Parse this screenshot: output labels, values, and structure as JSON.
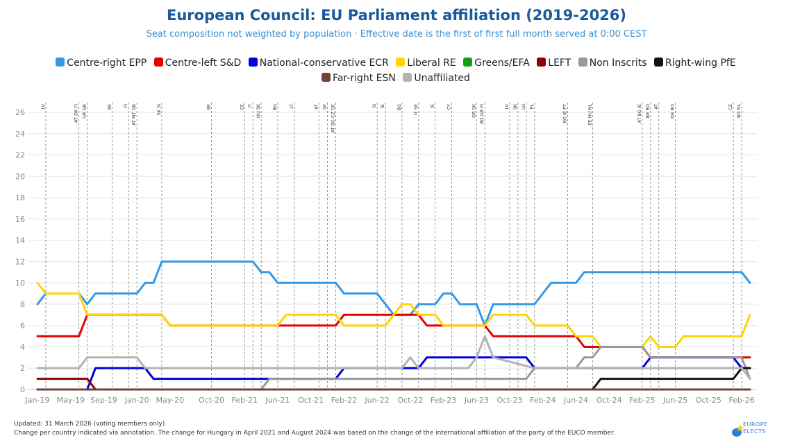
{
  "title": "European Council: EU Parliament affiliation (2019-2026)",
  "subtitle": "Seat composition not weighted by population · Effective date is the first of first full month served at 0:00 CEST",
  "footer": {
    "line1": "Updated: 31 March 2026 (voting members only)",
    "line2": "Change per country indicated via annotation. The change for Hungary in April 2021 and August 2024 was based on the change of the international affiliation of the party of the EUCO member."
  },
  "logo": {
    "line1": "EUROPE",
    "line2": "ELECTS"
  },
  "chart_data": {
    "type": "line",
    "ylim": [
      0,
      26
    ],
    "yticks": [
      0,
      2,
      4,
      6,
      8,
      10,
      12,
      14,
      16,
      18,
      20,
      22,
      24,
      26
    ],
    "xlim": [
      "2019-01",
      "2026-03"
    ],
    "xticks": [
      "2019-01",
      "2019-05",
      "2019-09",
      "2020-01",
      "2020-05",
      "2020-10",
      "2021-02",
      "2021-06",
      "2021-10",
      "2022-02",
      "2022-06",
      "2022-10",
      "2023-02",
      "2023-06",
      "2023-10",
      "2024-02",
      "2024-06",
      "2024-10",
      "2025-02",
      "2025-06",
      "2025-10",
      "2026-02"
    ],
    "xtick_labels": [
      "Jan-19",
      "May-19",
      "Sep-19",
      "Jan-20",
      "May-20",
      "Oct-20",
      "Feb-21",
      "Jun-21",
      "Oct-21",
      "Feb-22",
      "Jun-22",
      "Oct-22",
      "Feb-23",
      "Jun-23",
      "Oct-23",
      "Feb-24",
      "Jun-24",
      "Oct-24",
      "Feb-25",
      "Jun-25",
      "Oct-25",
      "Feb-26"
    ],
    "grid": true,
    "legend_position": "top",
    "annotations": [
      {
        "x": "2019-02",
        "label": "LV"
      },
      {
        "x": "2019-06",
        "label": "AT DK FI"
      },
      {
        "x": "2019-07",
        "label": "GR GB"
      },
      {
        "x": "2019-10",
        "label": "BE"
      },
      {
        "x": "2019-12",
        "label": "FI"
      },
      {
        "x": "2020-01",
        "label": "AT MT GB"
      },
      {
        "x": "2020-04",
        "label": "SK SI"
      },
      {
        "x": "2020-10",
        "label": "BE"
      },
      {
        "x": "2021-02",
        "label": "EE"
      },
      {
        "x": "2021-03",
        "label": "IT"
      },
      {
        "x": "2021-04",
        "label": "HU SK"
      },
      {
        "x": "2021-06",
        "label": "BG"
      },
      {
        "x": "2021-08",
        "label": "LT"
      },
      {
        "x": "2021-11",
        "label": "AT"
      },
      {
        "x": "2021-12",
        "label": "SE"
      },
      {
        "x": "2022-01",
        "label": "AT BG CZ DE"
      },
      {
        "x": "2022-06",
        "label": "SI"
      },
      {
        "x": "2022-07",
        "label": "IE"
      },
      {
        "x": "2022-09",
        "label": "BG"
      },
      {
        "x": "2022-11",
        "label": "IT SE"
      },
      {
        "x": "2023-01",
        "label": "IE"
      },
      {
        "x": "2023-03",
        "label": "CY"
      },
      {
        "x": "2023-06",
        "label": "GR SK"
      },
      {
        "x": "2023-07",
        "label": "BG GR FI"
      },
      {
        "x": "2023-10",
        "label": "LV"
      },
      {
        "x": "2023-11",
        "label": "SK"
      },
      {
        "x": "2023-12",
        "label": "LU"
      },
      {
        "x": "2024-01",
        "label": "PL"
      },
      {
        "x": "2024-05",
        "label": "BG IE PT"
      },
      {
        "x": "2024-08",
        "label": "EE HU NL"
      },
      {
        "x": "2025-02",
        "label": "AT BG IE"
      },
      {
        "x": "2025-03",
        "label": "BE RO"
      },
      {
        "x": "2025-04",
        "label": "AT"
      },
      {
        "x": "2025-06",
        "label": "DE RO"
      },
      {
        "x": "2026-01",
        "label": "CZ"
      },
      {
        "x": "2026-02",
        "label": "BG NL"
      }
    ],
    "series": [
      {
        "name": "Centre-right EPP",
        "color": "#3399e6",
        "points": [
          [
            "2019-01",
            8
          ],
          [
            "2019-02",
            9
          ],
          [
            "2019-06",
            9
          ],
          [
            "2019-07",
            8
          ],
          [
            "2019-08",
            9
          ],
          [
            "2020-01",
            9
          ],
          [
            "2020-02",
            10
          ],
          [
            "2020-03",
            10
          ],
          [
            "2020-04",
            12
          ],
          [
            "2021-03",
            12
          ],
          [
            "2021-04",
            11
          ],
          [
            "2021-05",
            11
          ],
          [
            "2021-06",
            10
          ],
          [
            "2021-12",
            10
          ],
          [
            "2022-01",
            10
          ],
          [
            "2022-02",
            9
          ],
          [
            "2022-06",
            9
          ],
          [
            "2022-07",
            8
          ],
          [
            "2022-08",
            7
          ],
          [
            "2022-09",
            7
          ],
          [
            "2022-10",
            7
          ],
          [
            "2022-11",
            8
          ],
          [
            "2023-01",
            8
          ],
          [
            "2023-02",
            9
          ],
          [
            "2023-03",
            9
          ],
          [
            "2023-04",
            8
          ],
          [
            "2023-06",
            8
          ],
          [
            "2023-07",
            6
          ],
          [
            "2023-08",
            8
          ],
          [
            "2023-12",
            8
          ],
          [
            "2024-01",
            8
          ],
          [
            "2024-02",
            9
          ],
          [
            "2024-03",
            10
          ],
          [
            "2024-06",
            10
          ],
          [
            "2024-07",
            11
          ],
          [
            "2026-02",
            11
          ],
          [
            "2026-03",
            10
          ]
        ]
      },
      {
        "name": "Centre-left S&D",
        "color": "#e60000",
        "points": [
          [
            "2019-01",
            5
          ],
          [
            "2019-06",
            5
          ],
          [
            "2019-07",
            7
          ],
          [
            "2020-04",
            7
          ],
          [
            "2020-05",
            6
          ],
          [
            "2022-01",
            6
          ],
          [
            "2022-02",
            7
          ],
          [
            "2022-11",
            7
          ],
          [
            "2022-12",
            6
          ],
          [
            "2023-02",
            6
          ],
          [
            "2023-03",
            6
          ],
          [
            "2023-07",
            6
          ],
          [
            "2023-08",
            5
          ],
          [
            "2024-04",
            5
          ],
          [
            "2024-06",
            5
          ],
          [
            "2024-07",
            4
          ],
          [
            "2024-09",
            4
          ],
          [
            "2024-10",
            4
          ],
          [
            "2025-02",
            4
          ],
          [
            "2025-03",
            3
          ],
          [
            "2025-06",
            3
          ],
          [
            "2026-02",
            3
          ],
          [
            "2026-03",
            3
          ]
        ]
      },
      {
        "name": "National-conservative ECR",
        "color": "#0000dd",
        "points": [
          [
            "2019-01",
            0
          ],
          [
            "2019-07",
            0
          ],
          [
            "2019-08",
            2
          ],
          [
            "2020-01",
            2
          ],
          [
            "2020-02",
            2
          ],
          [
            "2020-03",
            1
          ],
          [
            "2021-06",
            1
          ],
          [
            "2021-07",
            1
          ],
          [
            "2022-01",
            1
          ],
          [
            "2022-02",
            2
          ],
          [
            "2022-11",
            2
          ],
          [
            "2022-12",
            3
          ],
          [
            "2023-11",
            3
          ],
          [
            "2023-12",
            3
          ],
          [
            "2024-01",
            2
          ],
          [
            "2024-02",
            2
          ],
          [
            "2025-02",
            2
          ],
          [
            "2025-03",
            3
          ],
          [
            "2026-01",
            3
          ],
          [
            "2026-02",
            2
          ],
          [
            "2026-03",
            2
          ]
        ]
      },
      {
        "name": "Liberal RE",
        "color": "#ffd500",
        "points": [
          [
            "2019-01",
            10
          ],
          [
            "2019-02",
            9
          ],
          [
            "2019-06",
            9
          ],
          [
            "2019-07",
            7
          ],
          [
            "2020-04",
            7
          ],
          [
            "2020-05",
            6
          ],
          [
            "2021-06",
            6
          ],
          [
            "2021-07",
            7
          ],
          [
            "2022-01",
            7
          ],
          [
            "2022-02",
            6
          ],
          [
            "2022-07",
            6
          ],
          [
            "2022-08",
            7
          ],
          [
            "2022-09",
            8
          ],
          [
            "2022-10",
            8
          ],
          [
            "2022-11",
            7
          ],
          [
            "2023-01",
            7
          ],
          [
            "2023-02",
            6
          ],
          [
            "2023-07",
            6
          ],
          [
            "2023-08",
            7
          ],
          [
            "2023-12",
            7
          ],
          [
            "2024-01",
            6
          ],
          [
            "2024-05",
            6
          ],
          [
            "2024-06",
            5
          ],
          [
            "2024-08",
            5
          ],
          [
            "2024-09",
            4
          ],
          [
            "2025-02",
            4
          ],
          [
            "2025-03",
            5
          ],
          [
            "2025-04",
            4
          ],
          [
            "2025-06",
            4
          ],
          [
            "2025-07",
            5
          ],
          [
            "2026-02",
            5
          ],
          [
            "2026-03",
            7
          ]
        ]
      },
      {
        "name": "Greens/EFA",
        "color": "#11a011",
        "points": [
          [
            "2019-01",
            0
          ],
          [
            "2026-03",
            0
          ]
        ]
      },
      {
        "name": "LEFT",
        "color": "#8b0000",
        "points": [
          [
            "2019-01",
            1
          ],
          [
            "2019-07",
            1
          ],
          [
            "2019-08",
            0
          ],
          [
            "2026-03",
            0
          ]
        ]
      },
      {
        "name": "Non Inscrits",
        "color": "#999999",
        "points": [
          [
            "2019-01",
            0
          ],
          [
            "2021-04",
            0
          ],
          [
            "2021-05",
            1
          ],
          [
            "2023-12",
            1
          ],
          [
            "2024-01",
            2
          ],
          [
            "2024-06",
            2
          ],
          [
            "2024-07",
            3
          ],
          [
            "2024-08",
            3
          ],
          [
            "2024-09",
            4
          ],
          [
            "2025-02",
            4
          ],
          [
            "2025-03",
            3
          ],
          [
            "2026-02",
            3
          ],
          [
            "2026-03",
            1
          ]
        ]
      },
      {
        "name": "Right-wing PfE",
        "color": "#111111",
        "points": [
          [
            "2019-01",
            0
          ],
          [
            "2024-08",
            0
          ],
          [
            "2024-09",
            1
          ],
          [
            "2026-01",
            1
          ],
          [
            "2026-02",
            2
          ],
          [
            "2026-03",
            2
          ]
        ]
      },
      {
        "name": "Far-right ESN",
        "color": "#6b4436",
        "points": [
          [
            "2019-01",
            0
          ],
          [
            "2026-03",
            0
          ]
        ]
      },
      {
        "name": "Unaffiliated",
        "color": "#b3b3b3",
        "points": [
          [
            "2019-01",
            2
          ],
          [
            "2019-06",
            2
          ],
          [
            "2019-07",
            3
          ],
          [
            "2020-01",
            3
          ],
          [
            "2020-02",
            2
          ],
          [
            "2022-09",
            2
          ],
          [
            "2022-10",
            3
          ],
          [
            "2022-11",
            2
          ],
          [
            "2023-05",
            2
          ],
          [
            "2023-06",
            3
          ],
          [
            "2023-07",
            5
          ],
          [
            "2023-08",
            3
          ],
          [
            "2024-01",
            2
          ],
          [
            "2026-02",
            2
          ],
          [
            "2026-03",
            1
          ]
        ]
      }
    ]
  }
}
